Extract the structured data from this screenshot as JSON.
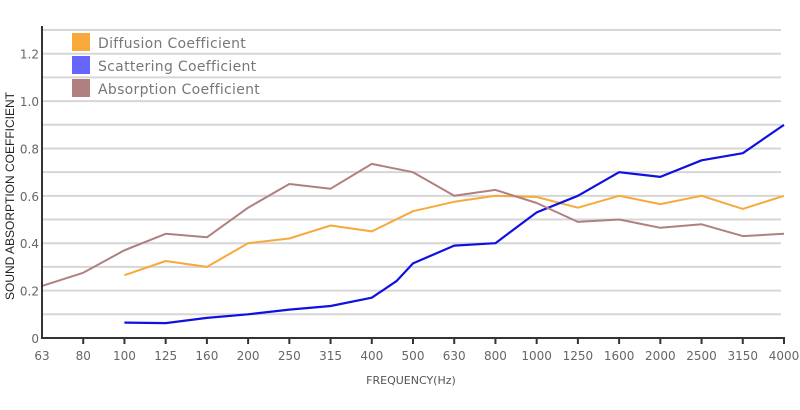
{
  "chart_data": {
    "type": "line",
    "title": "",
    "xlabel": "FREQUENCY(Hz)",
    "ylabel": "SOUND ABSORPTION COEFFICIENT",
    "ylim": [
      0,
      1.3
    ],
    "grid": true,
    "legend_position": "top-left",
    "x": [
      "63",
      "80",
      "100",
      "125",
      "160",
      "200",
      "250",
      "315",
      "400",
      "500",
      "630",
      "800",
      "1000",
      "1250",
      "1600",
      "2000",
      "2500",
      "3150",
      "4000"
    ],
    "y_ticks": [
      "0",
      "0.2",
      "0.4",
      "0.6",
      "0.8",
      "1.0",
      "1.2"
    ],
    "y_tick_values": [
      0,
      0.2,
      0.4,
      0.6,
      0.8,
      1.0,
      1.2
    ],
    "series": [
      {
        "name": "Diffusion Coefficient",
        "color": "#F7A93B",
        "points": [
          [
            2,
            0.265
          ],
          [
            3,
            0.325
          ],
          [
            4,
            0.3
          ],
          [
            5,
            0.4
          ],
          [
            6,
            0.42
          ],
          [
            7,
            0.475
          ],
          [
            8,
            0.45
          ],
          [
            9,
            0.535
          ],
          [
            10,
            0.575
          ],
          [
            11,
            0.6
          ],
          [
            12,
            0.595
          ],
          [
            13,
            0.55
          ],
          [
            14,
            0.6
          ],
          [
            15,
            0.565
          ],
          [
            16,
            0.6
          ],
          [
            17,
            0.545
          ],
          [
            18,
            0.6
          ]
        ]
      },
      {
        "name": "Scattering Coefficient",
        "color": "#1010E0",
        "legend_color": "#6666FF",
        "points": [
          [
            2,
            0.065
          ],
          [
            3,
            0.063
          ],
          [
            4,
            0.085
          ],
          [
            5,
            0.1
          ],
          [
            6,
            0.12
          ],
          [
            7,
            0.135
          ],
          [
            8,
            0.17
          ],
          [
            8.6,
            0.24
          ],
          [
            9,
            0.315
          ],
          [
            10,
            0.39
          ],
          [
            11,
            0.4
          ],
          [
            12,
            0.53
          ],
          [
            13,
            0.6
          ],
          [
            14,
            0.7
          ],
          [
            15,
            0.68
          ],
          [
            16,
            0.75
          ],
          [
            17,
            0.78
          ],
          [
            18,
            0.9
          ]
        ]
      },
      {
        "name": "Absorption Coefficient",
        "color": "#B08080",
        "points": [
          [
            0,
            0.22
          ],
          [
            1,
            0.275
          ],
          [
            2,
            0.37
          ],
          [
            3,
            0.44
          ],
          [
            4,
            0.425
          ],
          [
            5,
            0.55
          ],
          [
            6,
            0.65
          ],
          [
            7,
            0.63
          ],
          [
            8,
            0.735
          ],
          [
            9,
            0.7
          ],
          [
            10,
            0.6
          ],
          [
            11,
            0.625
          ],
          [
            12,
            0.57
          ],
          [
            13,
            0.49
          ],
          [
            14,
            0.5
          ],
          [
            15,
            0.465
          ],
          [
            16,
            0.48
          ],
          [
            17,
            0.43
          ],
          [
            18,
            0.44
          ]
        ]
      }
    ]
  }
}
